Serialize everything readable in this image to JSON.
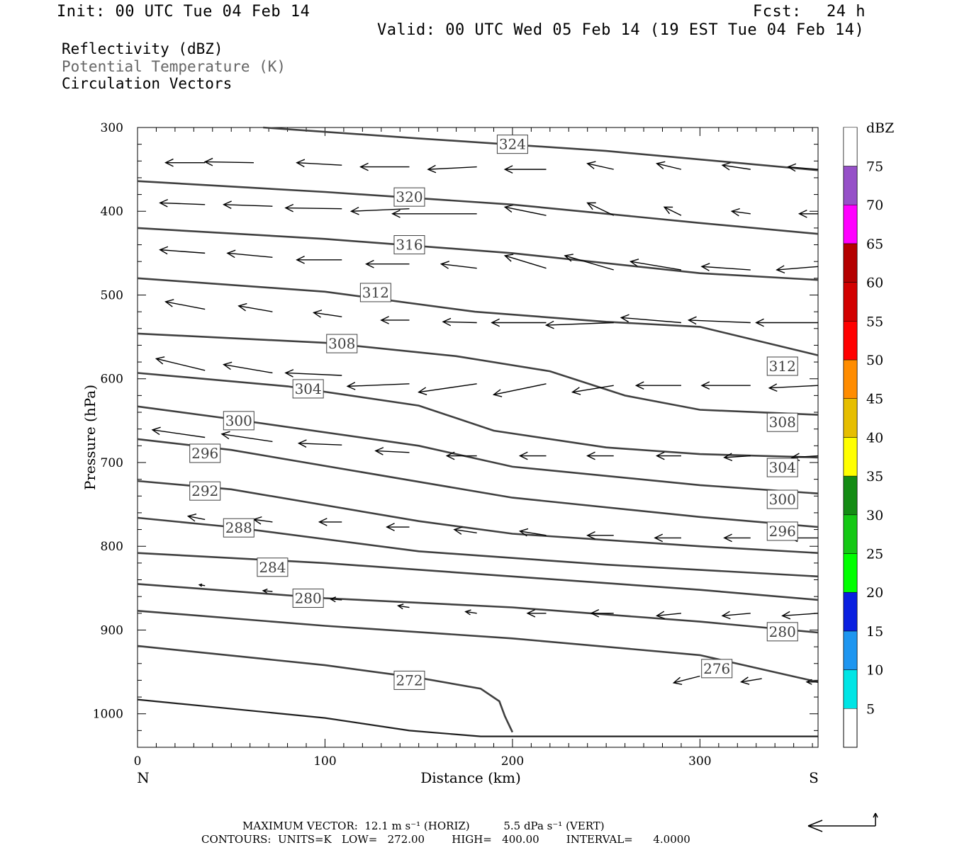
{
  "header": {
    "init": "Init: 00 UTC Tue 04 Feb 14",
    "fcst_label": "Fcst:",
    "fcst_value": "24 h",
    "valid": "Valid: 00 UTC Wed 05 Feb 14 (19 EST Tue 04 Feb 14)"
  },
  "fields": [
    {
      "label": "Reflectivity (dBZ)",
      "color": "#000000"
    },
    {
      "label": "Potential Temperature (K)",
      "color": "#666666"
    },
    {
      "label": "Circulation Vectors",
      "color": "#000000"
    }
  ],
  "footer": {
    "max_vector": "MAXIMUM VECTOR:  12.1 m s⁻¹ (HORIZ)          5.5 dPa s⁻¹ (VERT)",
    "contours": "CONTOURS:  UNITS=K   LOW=   272.00        HIGH=   400.00        INTERVAL=      4.0000"
  },
  "chart_data": {
    "type": "contour",
    "xlabel": "Distance (km)",
    "ylabel": "Pressure (hPa)",
    "xlim": [
      0,
      363
    ],
    "ylim": [
      1040,
      300
    ],
    "x_ticks": [
      "0",
      "100",
      "200",
      "300"
    ],
    "x_tick_values": [
      0,
      100,
      200,
      300
    ],
    "y_ticks": [
      "300",
      "400",
      "500",
      "600",
      "700",
      "800",
      "900",
      "1000"
    ],
    "y_tick_values": [
      300,
      400,
      500,
      600,
      700,
      800,
      900,
      1000
    ],
    "left_end": "N",
    "right_end": "S",
    "theta_contours": [
      {
        "label": "324",
        "points": [
          [
            67,
            300
          ],
          [
            150,
            313
          ],
          [
            250,
            328
          ],
          [
            363,
            351
          ]
        ],
        "label_at": [
          200,
          320
        ]
      },
      {
        "label": "320",
        "points": [
          [
            0,
            364
          ],
          [
            100,
            377
          ],
          [
            200,
            392
          ],
          [
            300,
            414
          ],
          [
            363,
            427
          ]
        ],
        "label_at": [
          145,
          383
        ]
      },
      {
        "label": "316",
        "points": [
          [
            0,
            420
          ],
          [
            100,
            433
          ],
          [
            200,
            450
          ],
          [
            300,
            474
          ],
          [
            363,
            482
          ]
        ],
        "label_at": [
          145,
          440
        ]
      },
      {
        "label": "312",
        "points": [
          [
            0,
            480
          ],
          [
            100,
            496
          ],
          [
            180,
            520
          ],
          [
            250,
            532
          ],
          [
            300,
            538
          ],
          [
            363,
            572
          ]
        ],
        "label_at": [
          127,
          497
        ]
      },
      {
        "label": "308",
        "points": [
          [
            0,
            546
          ],
          [
            100,
            557
          ],
          [
            170,
            573
          ],
          [
            220,
            591
          ],
          [
            260,
            620
          ],
          [
            300,
            637
          ],
          [
            363,
            643
          ]
        ],
        "label_at": [
          109,
          558
        ]
      },
      {
        "label": "304",
        "points": [
          [
            0,
            593
          ],
          [
            80,
            609
          ],
          [
            150,
            632
          ],
          [
            190,
            662
          ],
          [
            250,
            682
          ],
          [
            300,
            690
          ],
          [
            363,
            694
          ]
        ],
        "label_at": [
          91,
          612
        ]
      },
      {
        "label": "300",
        "points": [
          [
            0,
            633
          ],
          [
            50,
            648
          ],
          [
            150,
            680
          ],
          [
            200,
            705
          ],
          [
            300,
            727
          ],
          [
            363,
            737
          ]
        ],
        "label_at": [
          54,
          650
        ]
      },
      {
        "label": "296",
        "points": [
          [
            0,
            672
          ],
          [
            50,
            685
          ],
          [
            150,
            723
          ],
          [
            200,
            742
          ],
          [
            300,
            765
          ],
          [
            363,
            777
          ]
        ],
        "label_at": [
          36,
          689
        ]
      },
      {
        "label": "292",
        "points": [
          [
            0,
            722
          ],
          [
            50,
            732
          ],
          [
            150,
            770
          ],
          [
            200,
            785
          ],
          [
            300,
            800
          ],
          [
            363,
            808
          ]
        ],
        "label_at": [
          36,
          734
        ]
      },
      {
        "label": "288",
        "points": [
          [
            0,
            766
          ],
          [
            50,
            777
          ],
          [
            150,
            806
          ],
          [
            250,
            822
          ],
          [
            363,
            836
          ]
        ],
        "label_at": [
          54,
          778
        ]
      },
      {
        "label": "284",
        "points": [
          [
            0,
            808
          ],
          [
            100,
            820
          ],
          [
            200,
            836
          ],
          [
            300,
            852
          ],
          [
            363,
            864
          ]
        ],
        "label_at": [
          72,
          825
        ]
      },
      {
        "label": "280",
        "points": [
          [
            0,
            845
          ],
          [
            100,
            862
          ],
          [
            200,
            873
          ],
          [
            300,
            890
          ],
          [
            363,
            903
          ]
        ],
        "label_at": [
          91,
          862
        ]
      },
      {
        "label": "276",
        "points": [
          [
            0,
            877
          ],
          [
            100,
            895
          ],
          [
            200,
            910
          ],
          [
            300,
            930
          ],
          [
            363,
            962
          ]
        ],
        "label_at": [
          309,
          946
        ]
      },
      {
        "label": "272",
        "points": [
          [
            0,
            919
          ],
          [
            100,
            942
          ],
          [
            150,
            957
          ],
          [
            183,
            970
          ],
          [
            193,
            985
          ],
          [
            196,
            1003
          ],
          [
            200,
            1022
          ]
        ],
        "label_at": [
          145,
          960
        ]
      }
    ],
    "ground_line": [
      [
        0,
        983
      ],
      [
        100,
        1005
      ],
      [
        145,
        1020
      ],
      [
        183,
        1027
      ],
      [
        363,
        1027
      ]
    ],
    "theta_contour_labels_right": [
      {
        "label": "312",
        "at": [
          344,
          585
        ]
      },
      {
        "label": "308",
        "at": [
          344,
          652
        ]
      },
      {
        "label": "304",
        "at": [
          344,
          706
        ]
      },
      {
        "label": "300",
        "at": [
          344,
          744
        ]
      },
      {
        "label": "296",
        "at": [
          344,
          782
        ]
      },
      {
        "label": "280",
        "at": [
          344,
          902
        ]
      }
    ],
    "vectors": [
      {
        "x0": 36,
        "y0": 342,
        "x1": 15,
        "y1": 342
      },
      {
        "x0": 62,
        "y0": 342,
        "x1": 36,
        "y1": 341
      },
      {
        "x0": 109,
        "y0": 345,
        "x1": 85,
        "y1": 342
      },
      {
        "x0": 145,
        "y0": 347,
        "x1": 119,
        "y1": 347
      },
      {
        "x0": 181,
        "y0": 347,
        "x1": 155,
        "y1": 350
      },
      {
        "x0": 218,
        "y0": 350,
        "x1": 196,
        "y1": 350
      },
      {
        "x0": 254,
        "y0": 350,
        "x1": 240,
        "y1": 343
      },
      {
        "x0": 290,
        "y0": 350,
        "x1": 277,
        "y1": 343
      },
      {
        "x0": 327,
        "y0": 350,
        "x1": 312,
        "y1": 345
      },
      {
        "x0": 363,
        "y0": 350,
        "x1": 347,
        "y1": 347
      },
      {
        "x0": 36,
        "y0": 392,
        "x1": 12,
        "y1": 390
      },
      {
        "x0": 72,
        "y0": 394,
        "x1": 46,
        "y1": 392
      },
      {
        "x0": 109,
        "y0": 397,
        "x1": 79,
        "y1": 396
      },
      {
        "x0": 145,
        "y0": 397,
        "x1": 114,
        "y1": 400
      },
      {
        "x0": 181,
        "y0": 403,
        "x1": 136,
        "y1": 403
      },
      {
        "x0": 218,
        "y0": 405,
        "x1": 196,
        "y1": 395
      },
      {
        "x0": 254,
        "y0": 405,
        "x1": 240,
        "y1": 390
      },
      {
        "x0": 290,
        "y0": 405,
        "x1": 281,
        "y1": 395
      },
      {
        "x0": 327,
        "y0": 403,
        "x1": 317,
        "y1": 400
      },
      {
        "x0": 363,
        "y0": 403,
        "x1": 353,
        "y1": 403
      },
      {
        "x0": 36,
        "y0": 450,
        "x1": 12,
        "y1": 446
      },
      {
        "x0": 72,
        "y0": 455,
        "x1": 48,
        "y1": 450
      },
      {
        "x0": 109,
        "y0": 458,
        "x1": 85,
        "y1": 458
      },
      {
        "x0": 145,
        "y0": 463,
        "x1": 122,
        "y1": 463
      },
      {
        "x0": 181,
        "y0": 468,
        "x1": 162,
        "y1": 463
      },
      {
        "x0": 218,
        "y0": 468,
        "x1": 196,
        "y1": 453
      },
      {
        "x0": 254,
        "y0": 470,
        "x1": 228,
        "y1": 453
      },
      {
        "x0": 290,
        "y0": 470,
        "x1": 263,
        "y1": 460
      },
      {
        "x0": 327,
        "y0": 470,
        "x1": 301,
        "y1": 466
      },
      {
        "x0": 363,
        "y0": 466,
        "x1": 341,
        "y1": 470
      },
      {
        "x0": 36,
        "y0": 517,
        "x1": 15,
        "y1": 508
      },
      {
        "x0": 72,
        "y0": 520,
        "x1": 54,
        "y1": 513
      },
      {
        "x0": 109,
        "y0": 526,
        "x1": 94,
        "y1": 521
      },
      {
        "x0": 145,
        "y0": 530,
        "x1": 130,
        "y1": 530
      },
      {
        "x0": 181,
        "y0": 533,
        "x1": 163,
        "y1": 532
      },
      {
        "x0": 218,
        "y0": 533,
        "x1": 189,
        "y1": 533
      },
      {
        "x0": 254,
        "y0": 533,
        "x1": 218,
        "y1": 536
      },
      {
        "x0": 290,
        "y0": 533,
        "x1": 258,
        "y1": 527
      },
      {
        "x0": 327,
        "y0": 533,
        "x1": 294,
        "y1": 530
      },
      {
        "x0": 363,
        "y0": 533,
        "x1": 330,
        "y1": 533
      },
      {
        "x0": 36,
        "y0": 590,
        "x1": 10,
        "y1": 576
      },
      {
        "x0": 72,
        "y0": 593,
        "x1": 46,
        "y1": 583
      },
      {
        "x0": 109,
        "y0": 596,
        "x1": 79,
        "y1": 593
      },
      {
        "x0": 145,
        "y0": 606,
        "x1": 112,
        "y1": 609
      },
      {
        "x0": 181,
        "y0": 606,
        "x1": 150,
        "y1": 616
      },
      {
        "x0": 218,
        "y0": 606,
        "x1": 190,
        "y1": 619
      },
      {
        "x0": 254,
        "y0": 608,
        "x1": 232,
        "y1": 616
      },
      {
        "x0": 290,
        "y0": 608,
        "x1": 266,
        "y1": 608
      },
      {
        "x0": 327,
        "y0": 608,
        "x1": 301,
        "y1": 608
      },
      {
        "x0": 363,
        "y0": 608,
        "x1": 337,
        "y1": 611
      },
      {
        "x0": 36,
        "y0": 670,
        "x1": 8,
        "y1": 661
      },
      {
        "x0": 72,
        "y0": 675,
        "x1": 45,
        "y1": 666
      },
      {
        "x0": 109,
        "y0": 679,
        "x1": 86,
        "y1": 677
      },
      {
        "x0": 145,
        "y0": 688,
        "x1": 127,
        "y1": 686
      },
      {
        "x0": 181,
        "y0": 692,
        "x1": 165,
        "y1": 692
      },
      {
        "x0": 218,
        "y0": 692,
        "x1": 204,
        "y1": 692
      },
      {
        "x0": 254,
        "y0": 692,
        "x1": 240,
        "y1": 692
      },
      {
        "x0": 290,
        "y0": 692,
        "x1": 277,
        "y1": 692
      },
      {
        "x0": 327,
        "y0": 692,
        "x1": 313,
        "y1": 694
      },
      {
        "x0": 363,
        "y0": 692,
        "x1": 349,
        "y1": 694
      },
      {
        "x0": 36,
        "y0": 768,
        "x1": 27,
        "y1": 764
      },
      {
        "x0": 72,
        "y0": 771,
        "x1": 62,
        "y1": 768
      },
      {
        "x0": 109,
        "y0": 771,
        "x1": 97,
        "y1": 771
      },
      {
        "x0": 145,
        "y0": 777,
        "x1": 133,
        "y1": 777
      },
      {
        "x0": 181,
        "y0": 784,
        "x1": 169,
        "y1": 780
      },
      {
        "x0": 218,
        "y0": 787,
        "x1": 204,
        "y1": 782
      },
      {
        "x0": 254,
        "y0": 787,
        "x1": 240,
        "y1": 787
      },
      {
        "x0": 290,
        "y0": 790,
        "x1": 276,
        "y1": 790
      },
      {
        "x0": 327,
        "y0": 790,
        "x1": 313,
        "y1": 790
      },
      {
        "x0": 363,
        "y0": 790,
        "x1": 348,
        "y1": 790
      },
      {
        "x0": 36,
        "y0": 847,
        "x1": 33,
        "y1": 846
      },
      {
        "x0": 72,
        "y0": 854,
        "x1": 67,
        "y1": 853
      },
      {
        "x0": 109,
        "y0": 864,
        "x1": 103,
        "y1": 863
      },
      {
        "x0": 145,
        "y0": 873,
        "x1": 139,
        "y1": 871
      },
      {
        "x0": 181,
        "y0": 880,
        "x1": 175,
        "y1": 878
      },
      {
        "x0": 218,
        "y0": 880,
        "x1": 208,
        "y1": 880
      },
      {
        "x0": 254,
        "y0": 880,
        "x1": 242,
        "y1": 880
      },
      {
        "x0": 290,
        "y0": 880,
        "x1": 277,
        "y1": 883
      },
      {
        "x0": 327,
        "y0": 880,
        "x1": 312,
        "y1": 883
      },
      {
        "x0": 363,
        "y0": 880,
        "x1": 344,
        "y1": 883
      },
      {
        "x0": 300,
        "y0": 955,
        "x1": 286,
        "y1": 963
      },
      {
        "x0": 333,
        "y0": 958,
        "x1": 322,
        "y1": 962
      },
      {
        "x0": 363,
        "y0": 962,
        "x1": 357,
        "y1": 962
      }
    ],
    "colorbar": {
      "title": "dBZ",
      "labels": [
        "5",
        "10",
        "15",
        "20",
        "25",
        "30",
        "35",
        "40",
        "45",
        "50",
        "55",
        "60",
        "65",
        "70",
        "75"
      ],
      "colors": [
        "#00e5e5",
        "#1e96f0",
        "#0a20e0",
        "#00ff00",
        "#14c814",
        "#148c14",
        "#ffff00",
        "#e6be00",
        "#ff8c00",
        "#ff0000",
        "#d20000",
        "#b40000",
        "#ff00ff",
        "#9650c8",
        "#ffffff"
      ]
    }
  }
}
